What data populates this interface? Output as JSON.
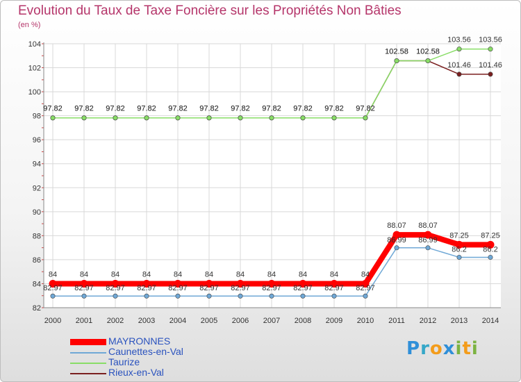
{
  "title": "Evolution du Taux de Taxe Foncière sur les Propriétés Non Bâties",
  "unit_label": "(en %)",
  "logo_text": "Proxiti",
  "chart_data": {
    "type": "line",
    "x": [
      "2000",
      "2001",
      "2002",
      "2003",
      "2004",
      "2005",
      "2006",
      "2007",
      "2008",
      "2009",
      "2010",
      "2011",
      "2012",
      "2013",
      "2014"
    ],
    "ylim": [
      82,
      104
    ],
    "yticks": [
      82,
      84,
      86,
      88,
      90,
      92,
      94,
      96,
      98,
      100,
      102,
      104
    ],
    "grid": true,
    "legend_position": "bottom-left",
    "series": [
      {
        "name": "MAYRONNES",
        "color": "#ff0000",
        "values": [
          84,
          84,
          84,
          84,
          84,
          84,
          84,
          84,
          84,
          84,
          84,
          88.07,
          88.07,
          87.25,
          87.25
        ],
        "labels": [
          "84",
          "84",
          "84",
          "84",
          "84",
          "84",
          "84",
          "84",
          "84",
          "84",
          "84",
          "88.07",
          "88.07",
          "87.25",
          "87.25"
        ]
      },
      {
        "name": "Caunettes-en-Val",
        "color": "#6fa8d6",
        "values": [
          82.97,
          82.97,
          82.97,
          82.97,
          82.97,
          82.97,
          82.97,
          82.97,
          82.97,
          82.97,
          82.97,
          86.99,
          86.99,
          86.2,
          86.2
        ],
        "labels": [
          "82.97",
          "82.97",
          "82.97",
          "82.97",
          "82.97",
          "82.97",
          "82.97",
          "82.97",
          "82.97",
          "82.97",
          "82.97",
          "86.99",
          "86.99",
          "86.2",
          "86.2"
        ]
      },
      {
        "name": "Taurize",
        "color": "#88dd66",
        "values": [
          97.82,
          97.82,
          97.82,
          97.82,
          97.82,
          97.82,
          97.82,
          97.82,
          97.82,
          97.82,
          97.82,
          102.58,
          102.58,
          103.56,
          103.56
        ],
        "labels": [
          "97.82",
          "97.82",
          "97.82",
          "97.82",
          "97.82",
          "97.82",
          "97.82",
          "97.82",
          "97.82",
          "97.82",
          "97.82",
          "102.58",
          "102.58",
          "103.56",
          "103.56"
        ]
      },
      {
        "name": "Rieux-en-Val",
        "color": "#7a1f1f",
        "values": [
          97.82,
          97.82,
          97.82,
          97.82,
          97.82,
          97.82,
          97.82,
          97.82,
          97.82,
          97.82,
          97.82,
          102.58,
          102.58,
          101.46,
          101.46
        ],
        "labels": [
          "97.82",
          "97.82",
          "97.82",
          "97.82",
          "97.82",
          "97.82",
          "97.82",
          "97.82",
          "97.82",
          "97.82",
          "97.82",
          "102.58",
          "102.58",
          "101.46",
          "101.46"
        ]
      }
    ]
  }
}
